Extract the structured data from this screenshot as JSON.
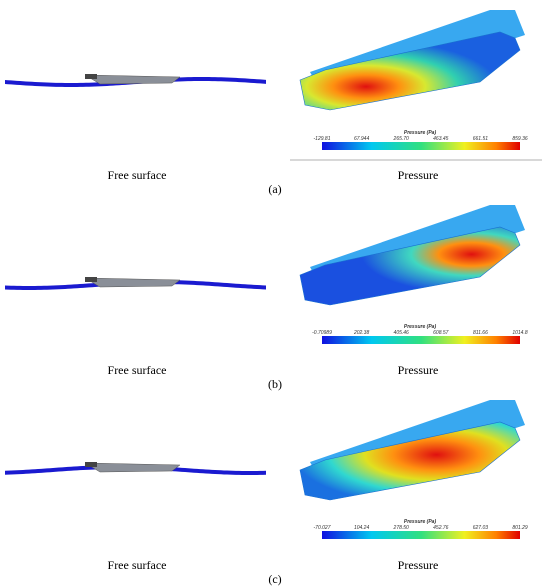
{
  "panels": [
    {
      "tag": "(a)",
      "left_label": "Free surface",
      "right_label": "Pressure",
      "colorbar": {
        "title": "Pressure (Pa)",
        "ticks": [
          "-129.81",
          "67.944",
          "265.70",
          "463.45",
          "661.51",
          "859.36"
        ]
      }
    },
    {
      "tag": "(b)",
      "left_label": "Free surface",
      "right_label": "Pressure",
      "colorbar": {
        "title": "Pressure (Pa)",
        "ticks": [
          "-0.70989",
          "202.38",
          "405.46",
          "608.57",
          "811.66",
          "1014.8"
        ]
      }
    },
    {
      "tag": "(c)",
      "left_label": "Free surface",
      "right_label": "Pressure",
      "colorbar": {
        "title": "Pressure (Pa)",
        "ticks": [
          "-70.027",
          "104.24",
          "278.50",
          "452.76",
          "627.03",
          "801.29"
        ]
      }
    }
  ]
}
